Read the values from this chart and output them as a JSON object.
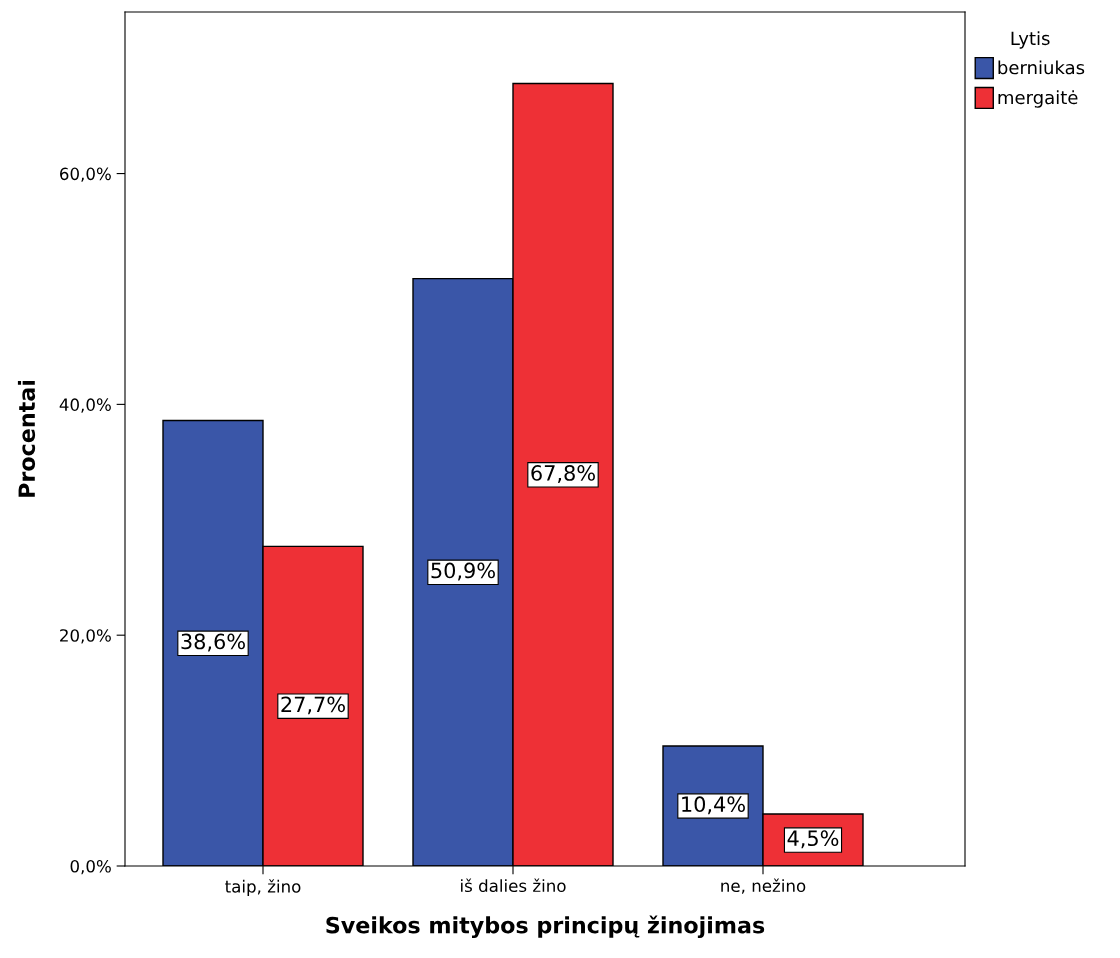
{
  "chart_data": {
    "type": "bar",
    "xlabel": "Sveikos mitybos principų žinojimas",
    "ylabel": "Procentai",
    "categories": [
      "taip, žino",
      "iš dalies žino",
      "ne, nežino"
    ],
    "series": [
      {
        "name": "berniukas",
        "color": "#3a56a8",
        "values": [
          38.6,
          50.9,
          10.4
        ],
        "value_labels": [
          "38,6%",
          "50,9%",
          "10,4%"
        ]
      },
      {
        "name": "mergaitė",
        "color": "#ee3036",
        "values": [
          27.7,
          67.8,
          4.5
        ],
        "value_labels": [
          "27,7%",
          "67,8%",
          "4,5%"
        ]
      }
    ],
    "legend_title": "Lytis",
    "legend": "top right",
    "ylim": [
      0,
      74
    ],
    "yticks": [
      {
        "value": 0,
        "label": "0,0%"
      },
      {
        "value": 20,
        "label": "20,0%"
      },
      {
        "value": 40,
        "label": "40,0%"
      },
      {
        "value": 60,
        "label": "60,0%"
      }
    ],
    "grid": false
  }
}
